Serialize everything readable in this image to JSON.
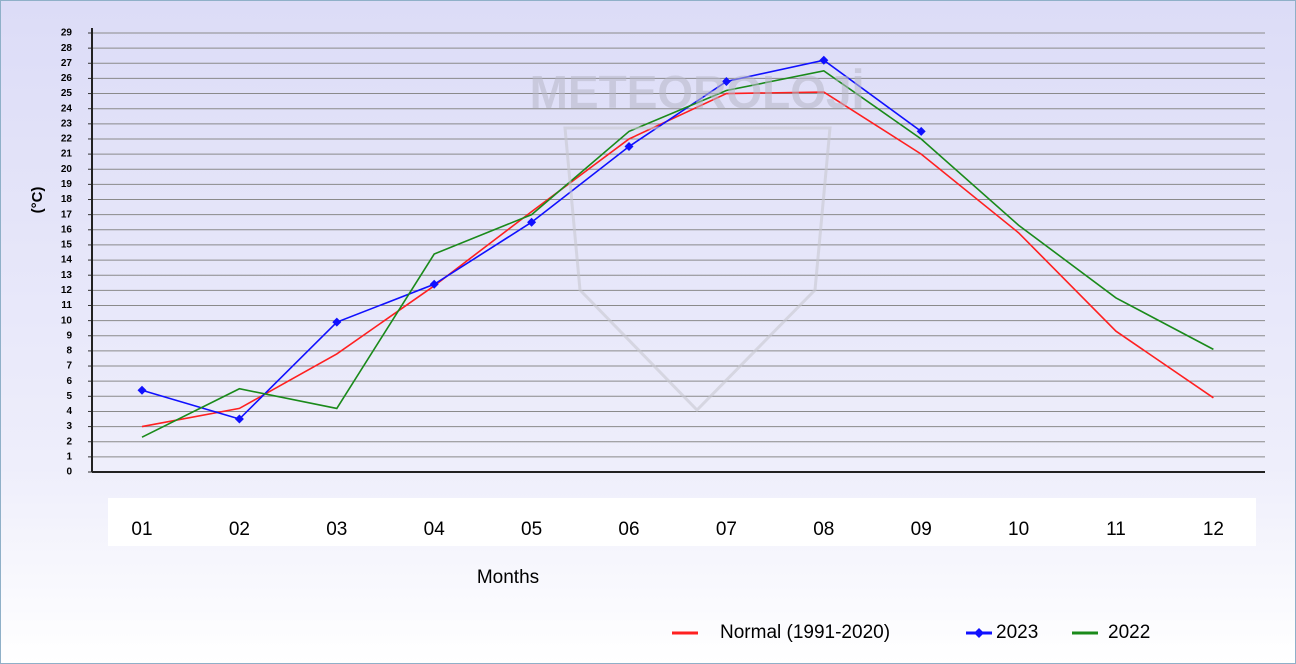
{
  "chart_data": {
    "type": "line",
    "watermark": "METEOROLOJİ",
    "ylabel": "(°C)",
    "xlabel": "Months",
    "categories": [
      "01",
      "02",
      "03",
      "04",
      "05",
      "06",
      "07",
      "08",
      "09",
      "10",
      "11",
      "12"
    ],
    "series": [
      {
        "name": "Normal (1991-2020)",
        "color": "#ff2020",
        "values": [
          3.0,
          4.2,
          7.8,
          12.3,
          17.2,
          22.0,
          25.0,
          25.1,
          21.0,
          15.8,
          9.3,
          4.9
        ]
      },
      {
        "name": "2023",
        "color": "#1010ff",
        "marker": "diamond",
        "values": [
          5.4,
          3.5,
          9.9,
          12.4,
          16.5,
          21.5,
          25.8,
          27.2,
          22.5,
          null,
          null,
          null
        ]
      },
      {
        "name": "2022",
        "color": "#1a8a1a",
        "values": [
          2.3,
          5.5,
          4.2,
          14.4,
          17.0,
          22.5,
          25.2,
          26.5,
          22.0,
          16.3,
          11.5,
          8.1
        ]
      }
    ],
    "ylim": [
      0,
      29
    ],
    "yticks": [
      0,
      1,
      2,
      3,
      4,
      5,
      6,
      7,
      8,
      9,
      10,
      11,
      12,
      13,
      14,
      15,
      16,
      17,
      18,
      19,
      20,
      21,
      22,
      23,
      24,
      25,
      26,
      27,
      28,
      29
    ],
    "grid": true,
    "legend": "bottom-right"
  }
}
